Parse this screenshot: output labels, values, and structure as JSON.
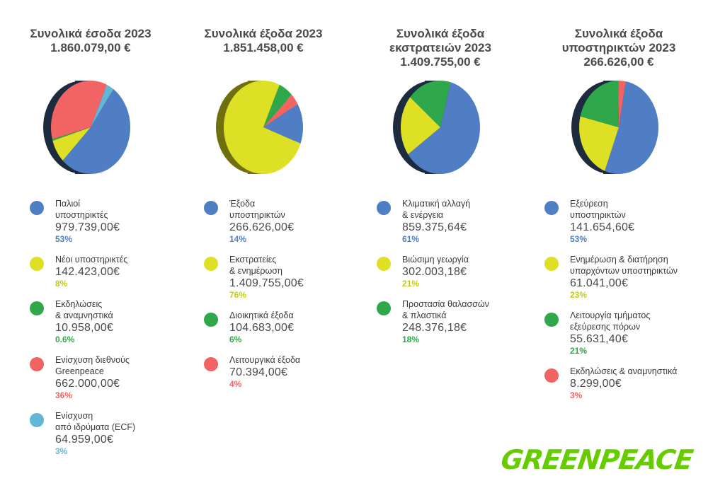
{
  "colors": {
    "dark_blue": "#4f7ec4",
    "yellow": "#dde025",
    "green": "#2ea84a",
    "red": "#f26364",
    "light_blue": "#62b6d6",
    "side_dark": "#1d2b3e",
    "side_olive": "#6f6f0e"
  },
  "chart_data": [
    {
      "type": "pie",
      "title_lines": [
        "Συνολικά έσοδα 2023",
        "1.860.079,00 €"
      ],
      "slices": [
        {
          "label_lines": [
            "Παλιοί",
            "υποστηρικτές"
          ],
          "value": "979.739,00€",
          "pct": "53%",
          "share": 53,
          "color": "#4f7ec4"
        },
        {
          "label_lines": [
            "Νέοι υποστηρικτές"
          ],
          "value": "142.423,00€",
          "pct": "8%",
          "share": 8,
          "color": "#dde025"
        },
        {
          "label_lines": [
            "Εκδηλώσεις",
            "& αναμνηστικά"
          ],
          "value": "10.958,00€",
          "pct": "0.6%",
          "share": 0.6,
          "color": "#2ea84a"
        },
        {
          "label_lines": [
            "Ενίσχυση διεθνούς",
            "Greenpeace"
          ],
          "value": "662.000,00€",
          "pct": "36%",
          "share": 36,
          "color": "#f26364"
        },
        {
          "label_lines": [
            "Ενίσχυση",
            "από ιδρύματα (ECF)"
          ],
          "value": "64.959,00€",
          "pct": "3%",
          "share": 3,
          "color": "#62b6d6"
        }
      ]
    },
    {
      "type": "pie",
      "title_lines": [
        "Συνολικά έξοδα 2023",
        "1.851.458,00 €"
      ],
      "slices": [
        {
          "label_lines": [
            "Έξοδα",
            "υποστηρικτών"
          ],
          "value": "266.626,00€",
          "pct": "14%",
          "share": 14,
          "color": "#4f7ec4"
        },
        {
          "label_lines": [
            "Εκστρατείες",
            "& ενημέρωση"
          ],
          "value": "1.409.755,00€",
          "pct": "76%",
          "share": 76,
          "color": "#dde025"
        },
        {
          "label_lines": [
            "Διοικητικά έξοδα"
          ],
          "value": "104.683,00€",
          "pct": "6%",
          "share": 6,
          "color": "#2ea84a"
        },
        {
          "label_lines": [
            "Λειτουργικά έξοδα"
          ],
          "value": "70.394,00€",
          "pct": "4%",
          "share": 4,
          "color": "#f26364"
        }
      ]
    },
    {
      "type": "pie",
      "title_lines": [
        "Συνολικά έξοδα",
        "εκστρατειών 2023",
        "1.409.755,00 €"
      ],
      "slices": [
        {
          "label_lines": [
            "Κλιματική αλλαγή",
            "& ενέργεια"
          ],
          "value": "859.375,64€",
          "pct": "61%",
          "share": 61,
          "color": "#4f7ec4"
        },
        {
          "label_lines": [
            "Βιώσιμη γεωργία"
          ],
          "value": "302.003,18€",
          "pct": "21%",
          "share": 21,
          "color": "#dde025"
        },
        {
          "label_lines": [
            "Προστασία θαλασσών",
            "& πλαστικά"
          ],
          "value": "248.376,18€",
          "pct": "18%",
          "share": 18,
          "color": "#2ea84a"
        }
      ]
    },
    {
      "type": "pie",
      "title_lines": [
        "Συνολικά έξοδα",
        "υποστηρικτών 2023",
        "266.626,00 €"
      ],
      "slices": [
        {
          "label_lines": [
            "Εξεύρεση",
            "υποστηρικτών"
          ],
          "value": "141.654,60€",
          "pct": "53%",
          "share": 53,
          "color": "#4f7ec4"
        },
        {
          "label_lines": [
            "Ενημέρωση & διατήρηση",
            "υπαρχόντων υποστηρικτών"
          ],
          "value": "61.041,00€",
          "pct": "23%",
          "share": 23,
          "color": "#dde025"
        },
        {
          "label_lines": [
            "Λειτουργία τμήματος",
            "εξεύρεσης πόρων"
          ],
          "value": "55.631,40€",
          "pct": "21%",
          "share": 21,
          "color": "#2ea84a"
        },
        {
          "label_lines": [
            "Εκδηλώσεις & αναμνηστικά"
          ],
          "value": "8.299,00€",
          "pct": "3%",
          "share": 3,
          "color": "#f26364"
        }
      ]
    }
  ],
  "logo": {
    "text": "GREENPEACE",
    "color": "#66cc00"
  }
}
